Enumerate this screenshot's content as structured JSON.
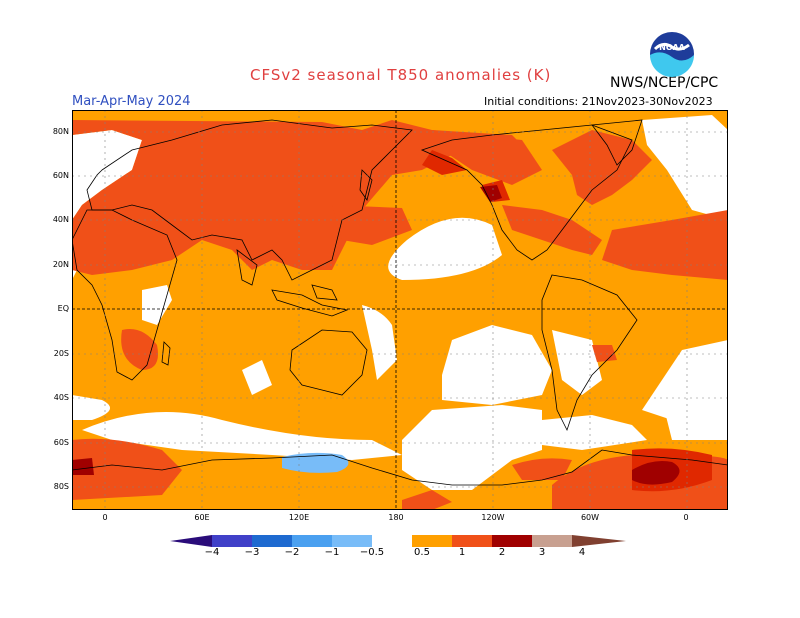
{
  "header": {
    "title": "CFSv2 seasonal T850 anomalies (K)",
    "season": "Mar-Apr-May 2024",
    "agency": "NWS/NCEP/CPC",
    "initial_conditions": "Initial conditions: 21Nov2023-30Nov2023",
    "logo_text": "NOAA"
  },
  "map": {
    "lat_labels": [
      "80N",
      "60N",
      "40N",
      "20N",
      "EQ",
      "20S",
      "40S",
      "60S",
      "80S"
    ],
    "lon_labels": [
      "0",
      "60E",
      "120E",
      "180",
      "120W",
      "60W",
      "0"
    ]
  },
  "legend": {
    "labels": [
      "−4",
      "−3",
      "−2",
      "−1",
      "−0.5",
      "0.5",
      "1",
      "2",
      "3",
      "4"
    ],
    "colors": {
      "below_minus4": "#2a0c7a",
      "minus4_minus3": "#4040c8",
      "minus3_minus2": "#1e6ad0",
      "minus2_minus1": "#4aa0f0",
      "minus1_minus05": "#78bcf8",
      "neutral": "#ffffff",
      "c05_1": "#ffa000",
      "c1_2": "#f05018",
      "c2_3": "#e02800",
      "c3_4": "#a00000",
      "c4_plus": "#c8a090",
      "above": "#804030"
    }
  }
}
